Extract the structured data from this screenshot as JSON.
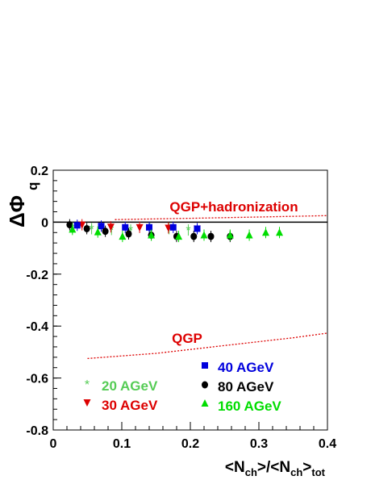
{
  "chart_data": {
    "type": "scatter",
    "title": "",
    "xlabel": {
      "main": "<N",
      "sub1": "ch",
      "mid": ">/<N",
      "sub2": "ch",
      "end": ">",
      "sub3": "tot"
    },
    "ylabel": {
      "main": "ΔΦ",
      "sub": "q"
    },
    "xlim": [
      0,
      0.4
    ],
    "ylim": [
      -0.8,
      0.2
    ],
    "x_ticks": [
      0,
      0.1,
      0.2,
      0.3,
      0.4
    ],
    "x_tick_labels": [
      "0",
      "0.1",
      "0.2",
      "0.3",
      "0.4"
    ],
    "y_ticks": [
      0.2,
      0,
      -0.2,
      -0.4,
      -0.6,
      -0.8
    ],
    "y_tick_labels": [
      "0.2",
      "0",
      "-0.2",
      "-0.4",
      "-0.6",
      "-0.8"
    ],
    "grid": false,
    "series": [
      {
        "name": "20 AGeV",
        "marker": "star",
        "color": "#55cc55",
        "x": [
          0.028,
          0.056,
          0.085,
          0.113,
          0.141,
          0.169,
          0.197
        ],
        "y": [
          -0.022,
          -0.025,
          -0.028,
          -0.03,
          -0.025,
          -0.025,
          -0.03
        ]
      },
      {
        "name": "30 AGeV",
        "marker": "triangle-down",
        "color": "#dd0000",
        "x": [
          0.042,
          0.084,
          0.126,
          0.168,
          0.21
        ],
        "y": [
          -0.01,
          -0.018,
          -0.02,
          -0.022,
          -0.025
        ]
      },
      {
        "name": "40 AGeV",
        "marker": "square",
        "color": "#0000dd",
        "x": [
          0.035,
          0.07,
          0.105,
          0.14,
          0.175,
          0.21
        ],
        "y": [
          -0.012,
          -0.015,
          -0.02,
          -0.02,
          -0.02,
          -0.025
        ]
      },
      {
        "name": "80 AGeV",
        "marker": "circle",
        "color": "#000000",
        "x": [
          0.024,
          0.049,
          0.076,
          0.11,
          0.143,
          0.18,
          0.205,
          0.23,
          0.258
        ],
        "y": [
          -0.01,
          -0.025,
          -0.035,
          -0.045,
          -0.05,
          -0.055,
          -0.055,
          -0.055,
          -0.055
        ]
      },
      {
        "name": "160 AGeV",
        "marker": "triangle-up",
        "color": "#00dd00",
        "x": [
          0.028,
          0.065,
          0.101,
          0.143,
          0.183,
          0.22,
          0.258,
          0.286,
          0.31,
          0.33
        ],
        "y": [
          -0.028,
          -0.038,
          -0.055,
          -0.05,
          -0.055,
          -0.05,
          -0.05,
          -0.05,
          -0.04,
          -0.04
        ]
      }
    ],
    "curves": [
      {
        "label": "QGP+hadronization",
        "color": "#dd0000",
        "style": "dotted",
        "x": [
          0.09,
          0.2,
          0.3,
          0.4
        ],
        "y": [
          0.01,
          0.015,
          0.02,
          0.025
        ]
      },
      {
        "label": "QGP",
        "color": "#dd0000",
        "style": "dotted",
        "x": [
          0.05,
          0.1,
          0.15,
          0.2,
          0.25,
          0.3,
          0.35,
          0.4
        ],
        "y": [
          -0.525,
          -0.515,
          -0.505,
          -0.49,
          -0.475,
          -0.46,
          -0.445,
          -0.427
        ]
      }
    ],
    "zero_line": 0
  }
}
